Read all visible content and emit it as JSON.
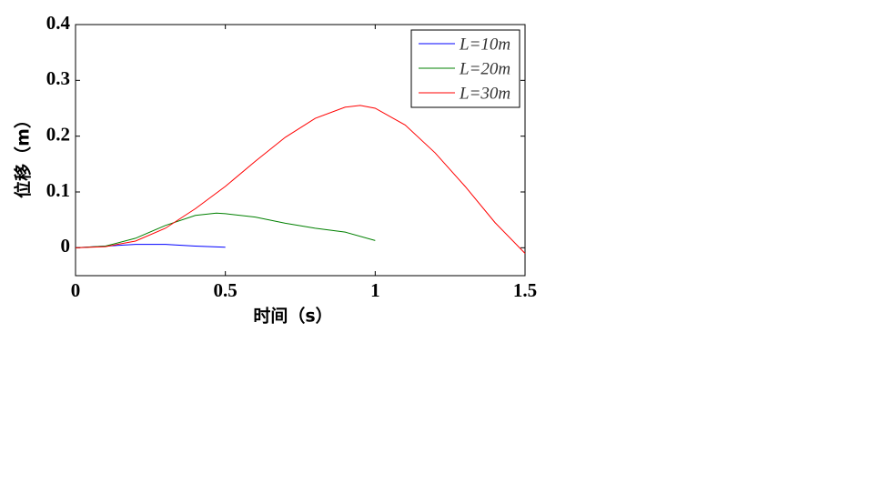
{
  "chart_data": {
    "type": "line",
    "x_label": "时间（s）",
    "y_label": "位移（m）",
    "xlim": [
      0,
      1.5
    ],
    "ylim": [
      -0.05,
      0.4
    ],
    "xticks": [
      0,
      0.5,
      1,
      1.5
    ],
    "yticks": [
      0,
      0.1,
      0.2,
      0.3,
      0.4
    ],
    "legend": "top-right",
    "series": [
      {
        "name": "L=10m",
        "color": "#0000ff",
        "x": [
          0,
          0.1,
          0.2,
          0.3,
          0.4,
          0.5
        ],
        "values": [
          0,
          0.003,
          0.006,
          0.006,
          0.003,
          0.001
        ]
      },
      {
        "name": "L=20m",
        "color": "#008000",
        "x": [
          0,
          0.1,
          0.2,
          0.3,
          0.4,
          0.47,
          0.5,
          0.6,
          0.7,
          0.8,
          0.9,
          1.0
        ],
        "values": [
          0,
          0.003,
          0.017,
          0.04,
          0.058,
          0.062,
          0.061,
          0.055,
          0.044,
          0.035,
          0.028,
          0.013
        ]
      },
      {
        "name": "L=30m",
        "color": "#ff0000",
        "x": [
          0,
          0.1,
          0.2,
          0.3,
          0.4,
          0.5,
          0.6,
          0.7,
          0.8,
          0.9,
          0.95,
          1.0,
          1.1,
          1.2,
          1.3,
          1.4,
          1.5
        ],
        "values": [
          0,
          0.002,
          0.012,
          0.035,
          0.07,
          0.11,
          0.155,
          0.198,
          0.232,
          0.252,
          0.255,
          0.25,
          0.22,
          0.17,
          0.11,
          0.045,
          -0.01
        ]
      }
    ]
  }
}
